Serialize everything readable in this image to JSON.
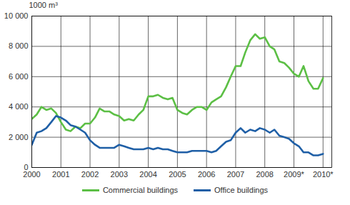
{
  "chart_data": {
    "type": "line",
    "y_label": "1000 m³",
    "x": [
      2000,
      2000.17,
      2000.33,
      2000.5,
      2000.67,
      2000.83,
      2001,
      2001.17,
      2001.33,
      2001.5,
      2001.67,
      2001.83,
      2002,
      2002.17,
      2002.33,
      2002.5,
      2002.67,
      2002.83,
      2003,
      2003.17,
      2003.33,
      2003.5,
      2003.67,
      2003.83,
      2004,
      2004.17,
      2004.33,
      2004.5,
      2004.67,
      2004.83,
      2005,
      2005.17,
      2005.33,
      2005.5,
      2005.67,
      2005.83,
      2006,
      2006.17,
      2006.33,
      2006.5,
      2006.67,
      2006.83,
      2007,
      2007.17,
      2007.33,
      2007.5,
      2007.67,
      2007.83,
      2008,
      2008.17,
      2008.33,
      2008.5,
      2008.67,
      2008.83,
      2009,
      2009.17,
      2009.33,
      2009.5,
      2009.67,
      2009.83,
      2010
    ],
    "series": [
      {
        "name": "Commercial buildings",
        "color": "#5cbf45",
        "values": [
          3200,
          3500,
          4000,
          3800,
          3900,
          3600,
          3000,
          2500,
          2400,
          2700,
          2600,
          2900,
          2900,
          3300,
          3900,
          3700,
          3700,
          3500,
          3400,
          3100,
          3200,
          3100,
          3500,
          3800,
          4700,
          4700,
          4800,
          4600,
          4500,
          4600,
          3800,
          3600,
          3500,
          3800,
          4000,
          4000,
          3800,
          4300,
          4500,
          4700,
          5300,
          6000,
          6700,
          6700,
          7600,
          8400,
          8800,
          8500,
          8600,
          8000,
          7800,
          7000,
          6900,
          6600,
          6200,
          6000,
          6700,
          5700,
          5200,
          5200,
          5900
        ]
      },
      {
        "name": "Office buildings",
        "color": "#1f5fa6",
        "values": [
          1500,
          2300,
          2400,
          2600,
          3000,
          3400,
          3300,
          3100,
          2800,
          2700,
          2500,
          2300,
          1800,
          1500,
          1300,
          1300,
          1300,
          1300,
          1500,
          1400,
          1300,
          1200,
          1200,
          1200,
          1300,
          1200,
          1300,
          1200,
          1200,
          1100,
          1000,
          1000,
          1000,
          1100,
          1100,
          1100,
          1100,
          1000,
          1100,
          1400,
          1700,
          1800,
          2300,
          2600,
          2300,
          2500,
          2400,
          2600,
          2500,
          2300,
          2500,
          2100,
          2000,
          1900,
          1600,
          1400,
          1000,
          1000,
          800,
          800,
          900
        ]
      }
    ],
    "xlim": [
      2000,
      2010.3
    ],
    "xticks": [
      2000,
      2001,
      2002,
      2003,
      2004,
      2005,
      2006,
      2007,
      2008,
      {
        "value": 2009,
        "label": "2009*"
      },
      {
        "value": 2010,
        "label": "2010*"
      }
    ],
    "ylim": [
      0,
      10000
    ],
    "yticks": [
      0,
      {
        "value": 2000,
        "label": "2 000"
      },
      {
        "value": 4000,
        "label": "4 000"
      },
      {
        "value": 6000,
        "label": "6 000"
      },
      {
        "value": 8000,
        "label": "8 000"
      },
      {
        "value": 10000,
        "label": "10 000"
      }
    ],
    "grid": true,
    "legend": "bottom"
  }
}
